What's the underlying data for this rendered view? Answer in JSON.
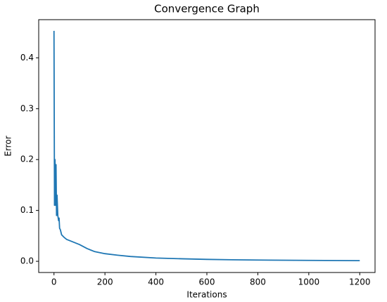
{
  "chart_data": {
    "type": "line",
    "title": "Convergence Graph",
    "x_label": "Iterations",
    "y_label": "Error",
    "x": [
      0,
      2,
      4,
      6,
      8,
      10,
      12,
      15,
      18,
      20,
      22,
      25,
      30,
      40,
      50,
      70,
      100,
      130,
      160,
      200,
      250,
      300,
      400,
      500,
      600,
      700,
      800,
      1000,
      1200
    ],
    "series": [
      {
        "name": "Error",
        "color": "#1f77b4",
        "values": [
          0.453,
          0.11,
          0.2,
          0.11,
          0.19,
          0.09,
          0.13,
          0.09,
          0.08,
          0.085,
          0.065,
          0.062,
          0.052,
          0.047,
          0.043,
          0.039,
          0.033,
          0.025,
          0.019,
          0.015,
          0.012,
          0.0095,
          0.0065,
          0.005,
          0.0038,
          0.003,
          0.0025,
          0.0018,
          0.0013
        ]
      }
    ],
    "xlim": [
      -60,
      1260
    ],
    "ylim": [
      -0.022,
      0.475
    ],
    "xticks": [
      0,
      200,
      400,
      600,
      800,
      1000,
      1200
    ],
    "yticks": [
      {
        "value": 0,
        "label": "0.0"
      },
      0.1,
      0.2,
      0.3,
      0.4
    ]
  }
}
